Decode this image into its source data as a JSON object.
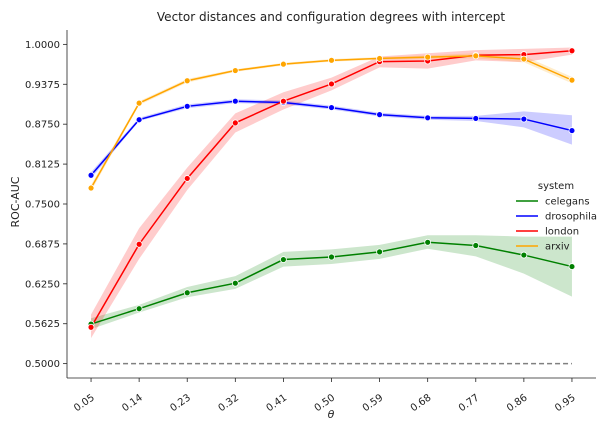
{
  "chart_data": {
    "type": "line",
    "title": "Vector distances and configuration degrees with intercept",
    "xlabel": "θ",
    "ylabel": "ROC-AUC",
    "x": [
      0.05,
      0.14,
      0.23,
      0.32,
      0.41,
      0.5,
      0.59,
      0.68,
      0.77,
      0.86,
      0.95
    ],
    "x_tick_labels": [
      "0.05",
      "0.14",
      "0.23",
      "0.32",
      "0.41",
      "0.50",
      "0.59",
      "0.68",
      "0.77",
      "0.86",
      "0.95"
    ],
    "y_ticks": [
      0.5,
      0.5625,
      0.625,
      0.6875,
      0.75,
      0.8125,
      0.875,
      0.9375,
      1.0
    ],
    "y_tick_labels": [
      "0.5000",
      "0.5625",
      "0.6250",
      "0.6875",
      "0.7500",
      "0.8125",
      "0.8750",
      "0.9375",
      "1.0000"
    ],
    "ylim": [
      0.4775,
      1.0225
    ],
    "x_tick_rotation_deg": -35,
    "grid": false,
    "legend": {
      "title": "system",
      "placement": "center-right"
    },
    "baseline": {
      "value": 0.5,
      "style": "dashed",
      "color": "#808080"
    },
    "series": [
      {
        "name": "celegans",
        "color": "#008000",
        "values": [
          0.562,
          0.586,
          0.611,
          0.626,
          0.663,
          0.667,
          0.675,
          0.69,
          0.685,
          0.67,
          0.652
        ],
        "ci_low": [
          0.554,
          0.58,
          0.604,
          0.617,
          0.652,
          0.656,
          0.664,
          0.68,
          0.668,
          0.641,
          0.605
        ],
        "ci_high": [
          0.571,
          0.592,
          0.62,
          0.637,
          0.675,
          0.679,
          0.686,
          0.701,
          0.701,
          0.699,
          0.699
        ]
      },
      {
        "name": "drosophila",
        "color": "#0000ff",
        "values": [
          0.795,
          0.882,
          0.903,
          0.911,
          0.909,
          0.901,
          0.89,
          0.885,
          0.884,
          0.883,
          0.865
        ],
        "ci_low": [
          0.79,
          0.88,
          0.9,
          0.908,
          0.906,
          0.898,
          0.887,
          0.882,
          0.88,
          0.87,
          0.843
        ],
        "ci_high": [
          0.8,
          0.885,
          0.906,
          0.914,
          0.912,
          0.904,
          0.893,
          0.888,
          0.888,
          0.895,
          0.889
        ]
      },
      {
        "name": "london",
        "color": "#ff0000",
        "values": [
          0.557,
          0.687,
          0.79,
          0.877,
          0.911,
          0.938,
          0.973,
          0.974,
          0.983,
          0.984,
          0.99
        ],
        "ci_low": [
          0.54,
          0.664,
          0.772,
          0.862,
          0.898,
          0.928,
          0.964,
          0.962,
          0.975,
          0.972,
          0.984
        ],
        "ci_high": [
          0.577,
          0.712,
          0.807,
          0.892,
          0.925,
          0.948,
          0.981,
          0.986,
          0.991,
          0.993,
          0.995
        ]
      },
      {
        "name": "arxiv",
        "color": "#ffa500",
        "values": [
          0.775,
          0.908,
          0.943,
          0.959,
          0.969,
          0.975,
          0.978,
          0.98,
          0.982,
          0.977,
          0.944
        ],
        "ci_low": [
          0.77,
          0.905,
          0.94,
          0.957,
          0.967,
          0.973,
          0.976,
          0.977,
          0.978,
          0.972,
          0.939
        ],
        "ci_high": [
          0.78,
          0.911,
          0.946,
          0.961,
          0.971,
          0.977,
          0.98,
          0.983,
          0.986,
          0.982,
          0.949
        ]
      }
    ]
  }
}
